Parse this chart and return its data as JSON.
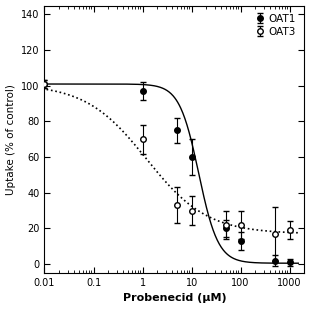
{
  "oat1_x": [
    0.01,
    1.0,
    5.0,
    10.0,
    50.0,
    100.0,
    500.0,
    1000.0
  ],
  "oat1_y": [
    101.0,
    97.0,
    75.0,
    60.0,
    20.0,
    13.0,
    2.0,
    1.0
  ],
  "oat1_yerr": [
    2.0,
    5.0,
    7.0,
    10.0,
    5.0,
    5.0,
    3.0,
    2.0
  ],
  "oat3_x": [
    0.01,
    1.0,
    5.0,
    10.0,
    50.0,
    100.0,
    500.0,
    1000.0
  ],
  "oat3_y": [
    101.0,
    70.0,
    33.0,
    30.0,
    22.0,
    22.0,
    17.0,
    19.0
  ],
  "oat3_yerr": [
    2.0,
    8.0,
    10.0,
    8.0,
    8.0,
    8.0,
    15.0,
    5.0
  ],
  "oat1_ic50": 14.0,
  "oat1_hill": 2.2,
  "oat1_emax": 101.0,
  "oat1_emin": 0.5,
  "oat3_ic50": 1.2,
  "oat3_hill": 0.7,
  "oat3_emax": 101.0,
  "oat3_emin": 17.0,
  "xlabel": "Probenecid (μM)",
  "ylabel": "Uptake (% of control)",
  "ylim": [
    -5,
    145
  ],
  "xlim": [
    0.01,
    2000
  ],
  "legend_labels": [
    "OAT1",
    "OAT3"
  ],
  "color": "#000000",
  "yticks": [
    0,
    20,
    40,
    60,
    80,
    100,
    120,
    140
  ],
  "xticks": [
    0.01,
    0.1,
    1,
    10,
    100,
    1000
  ],
  "xticklabels": [
    "0.01",
    "0.1",
    "1",
    "10",
    "100",
    "1000"
  ]
}
